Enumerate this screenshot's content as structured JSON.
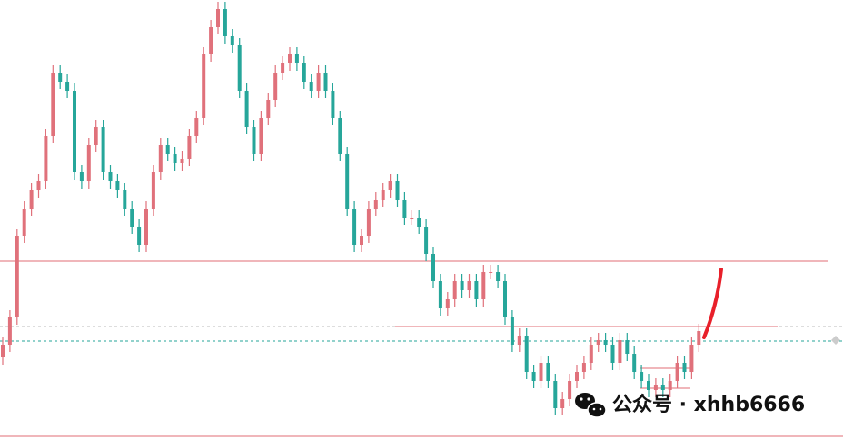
{
  "chart_data": {
    "type": "candlestick",
    "ylim": [
      0,
      484
    ],
    "up_color": "#e0717b",
    "down_color": "#26a69a",
    "open": [
      90,
      104,
      134,
      224,
      254,
      274,
      284,
      334,
      404,
      394,
      384,
      294,
      284,
      324,
      344,
      294,
      284,
      274,
      254,
      234,
      214,
      254,
      294,
      324,
      314,
      304,
      309,
      334,
      354,
      424,
      454,
      474,
      444,
      434,
      384,
      344,
      314,
      354,
      374,
      404,
      414,
      424,
      414,
      394,
      384,
      404,
      384,
      354,
      314,
      254,
      214,
      224,
      254,
      264,
      274,
      284,
      264,
      244,
      244,
      234,
      204,
      174,
      144,
      154,
      174,
      164,
      174,
      154,
      184,
      184,
      174,
      134,
      104,
      114,
      74,
      64,
      84,
      64,
      34,
      44,
      64,
      74,
      84,
      104,
      109,
      104,
      84,
      109,
      94,
      74,
      64,
      54,
      59,
      54,
      64,
      84,
      74,
      104
    ],
    "high": [
      112,
      142,
      232,
      262,
      282,
      292,
      342,
      412,
      412,
      402,
      392,
      302,
      332,
      352,
      352,
      302,
      292,
      282,
      262,
      242,
      262,
      302,
      332,
      332,
      322,
      317,
      342,
      362,
      432,
      462,
      482,
      482,
      452,
      442,
      392,
      352,
      362,
      382,
      412,
      422,
      432,
      432,
      422,
      402,
      412,
      412,
      392,
      362,
      322,
      262,
      232,
      262,
      272,
      282,
      292,
      292,
      272,
      252,
      252,
      242,
      212,
      182,
      162,
      182,
      182,
      182,
      182,
      192,
      192,
      192,
      182,
      142,
      122,
      122,
      82,
      92,
      92,
      72,
      52,
      72,
      82,
      92,
      112,
      117,
      117,
      112,
      117,
      117,
      102,
      82,
      72,
      67,
      67,
      72,
      92,
      92,
      112,
      127
    ],
    "low": [
      82,
      96,
      126,
      216,
      246,
      266,
      276,
      326,
      386,
      376,
      286,
      276,
      276,
      316,
      286,
      276,
      266,
      246,
      226,
      206,
      206,
      246,
      286,
      306,
      296,
      296,
      301,
      326,
      346,
      416,
      446,
      436,
      426,
      376,
      336,
      306,
      306,
      346,
      366,
      396,
      406,
      406,
      386,
      376,
      376,
      376,
      346,
      306,
      246,
      206,
      206,
      216,
      246,
      256,
      266,
      256,
      236,
      236,
      226,
      196,
      166,
      136,
      136,
      146,
      156,
      156,
      146,
      146,
      176,
      166,
      126,
      96,
      96,
      66,
      56,
      56,
      56,
      26,
      26,
      36,
      56,
      66,
      76,
      96,
      96,
      76,
      76,
      86,
      66,
      56,
      46,
      46,
      46,
      46,
      56,
      66,
      66,
      96
    ],
    "close": [
      104,
      134,
      224,
      254,
      274,
      284,
      334,
      404,
      394,
      384,
      294,
      284,
      324,
      344,
      294,
      284,
      274,
      254,
      234,
      214,
      254,
      294,
      324,
      314,
      304,
      309,
      334,
      354,
      424,
      454,
      474,
      444,
      434,
      384,
      344,
      314,
      354,
      374,
      404,
      414,
      424,
      414,
      394,
      384,
      404,
      384,
      354,
      314,
      254,
      214,
      224,
      254,
      264,
      274,
      284,
      264,
      244,
      244,
      234,
      204,
      174,
      144,
      154,
      174,
      164,
      174,
      154,
      184,
      184,
      174,
      134,
      104,
      114,
      74,
      64,
      84,
      64,
      34,
      44,
      64,
      74,
      84,
      104,
      109,
      104,
      84,
      109,
      94,
      74,
      64,
      54,
      59,
      54,
      64,
      84,
      74,
      104,
      119
    ],
    "hlines": [
      {
        "value": 124,
        "color": "#bbbbbb",
        "style": "dotted"
      },
      {
        "value": 196,
        "color": "#e06c75",
        "style": "solid"
      },
      {
        "value": 124,
        "color": "#e06c75",
        "style": "solid"
      },
      {
        "value": 108,
        "color": "#26a69a",
        "style": "dotted"
      },
      {
        "value": 78,
        "color": "#e06c75",
        "style": "solid"
      },
      {
        "value": 56,
        "color": "#e06c75",
        "style": "solid"
      },
      {
        "value": 3,
        "color": "#e06c75",
        "style": "solid"
      }
    ]
  },
  "watermark": "公众号 · xhhb6666"
}
